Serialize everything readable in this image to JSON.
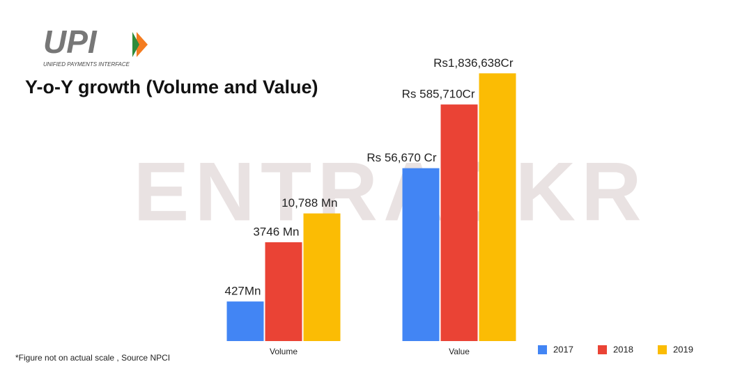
{
  "logo": {
    "mark": "UPI",
    "tagline": "UNIFIED PAYMENTS INTERFACE"
  },
  "watermark": "ENTRACKR",
  "chart_data": {
    "type": "bar",
    "title": "Y-o-Y growth (Volume and Value)",
    "categories": [
      "Volume",
      "Value"
    ],
    "series": [
      {
        "name": "2017",
        "color": "#4285f4",
        "values": [
          427,
          56670
        ],
        "value_labels": [
          "427Mn",
          "Rs 56,670 Cr"
        ]
      },
      {
        "name": "2018",
        "color": "#ea4335",
        "values": [
          3746,
          585710
        ],
        "value_labels": [
          "3746 Mn",
          "Rs 585,710Cr"
        ]
      },
      {
        "name": "2019",
        "color": "#fbbc04",
        "values": [
          10788,
          1836638
        ],
        "value_labels": [
          "10,788 Mn",
          "Rs1,836,638Cr"
        ]
      }
    ],
    "log_scale": true,
    "ylim": [
      100,
      2000000
    ],
    "footnote": "*Figure not on actual scale , Source NPCI"
  }
}
